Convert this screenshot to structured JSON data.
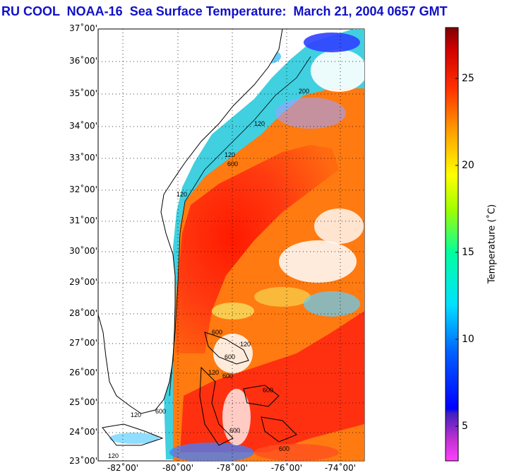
{
  "title": "RU COOL  NOAA-16  Sea Surface Temperature:  March 21, 2004 0657 GMT",
  "lat_labels": [
    "37˚00'",
    "36˚00'",
    "35˚00'",
    "34˚00'",
    "33˚00'",
    "32˚00'",
    "31˚00'",
    "30˚00'",
    "29˚00'",
    "28˚00'",
    "27˚00'",
    "26˚00'",
    "25˚00'",
    "24˚00'",
    "23˚00'"
  ],
  "lon_labels": [
    "-82˚00'",
    "-80˚00'",
    "-78˚00'",
    "-76˚00'",
    "-74˚00'"
  ],
  "colorbar": {
    "title": "Temperature (˚C)",
    "ticks": [
      "25",
      "20",
      "15",
      "10",
      "5"
    ],
    "range": [
      3,
      28
    ]
  },
  "isobath_labels": [
    "200",
    "120",
    "120",
    "600",
    "120",
    "600",
    "600",
    "120",
    "600",
    "120",
    "600",
    "600",
    "120",
    "600",
    "600",
    "120"
  ],
  "colors": {
    "title": "#1010c8",
    "land": "#ffffff",
    "coast": "#000000",
    "warm": "#e8140a",
    "cool": "#00a0ff"
  }
}
